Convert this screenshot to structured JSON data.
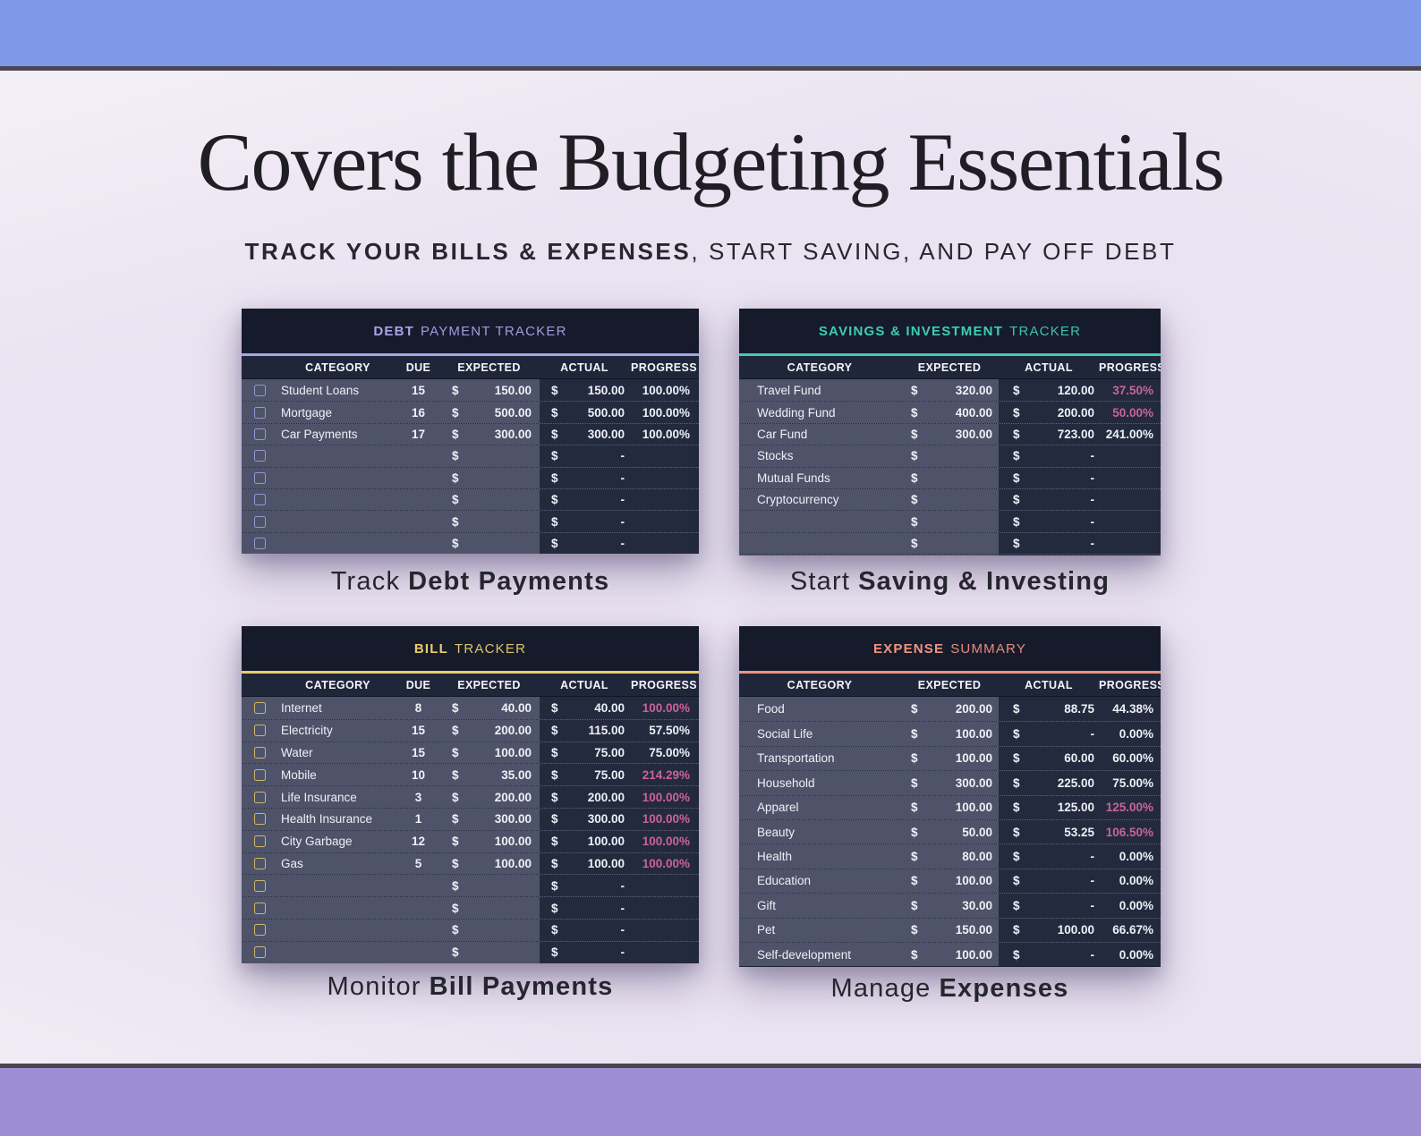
{
  "header": {
    "title": "Covers the Budgeting Essentials",
    "subtitle_bold": "TRACK YOUR BILLS & EXPENSES",
    "subtitle_rest": ", START SAVING, AND PAY OFF DEBT"
  },
  "colors": {
    "top_bar": "#7e99e8",
    "bottom_bar": "#9d8ed3",
    "background": "#eae3f1",
    "table_dark": "#242a3e",
    "table_light_zone": "#4e5369",
    "pink_value": "#c9639b",
    "debt_accent": "#a7a3e8",
    "savings_accent": "#3fccb4",
    "bill_accent": "#e9cd6b",
    "expense_accent": "#f0937f"
  },
  "tables": {
    "debt": {
      "title_bold": "DEBT",
      "title_rest": "PAYMENT TRACKER",
      "accent": "#a7a3e8",
      "has_checkbox": true,
      "columns": [
        "CATEGORY",
        "DUE",
        "EXPECTED",
        "ACTUAL",
        "PROGRESS"
      ],
      "caption_normal": "Track",
      "caption_bold": "Debt Payments",
      "rows": [
        {
          "category": "Student Loans",
          "due": "15",
          "expected": "150.00",
          "actual": "150.00",
          "progress": "100.00%",
          "pink": false
        },
        {
          "category": "Mortgage",
          "due": "16",
          "expected": "500.00",
          "actual": "500.00",
          "progress": "100.00%",
          "pink": false
        },
        {
          "category": "Car Payments",
          "due": "17",
          "expected": "300.00",
          "actual": "300.00",
          "progress": "100.00%",
          "pink": false
        },
        {
          "category": "",
          "due": "",
          "expected": "",
          "actual": "-",
          "progress": "",
          "pink": false
        },
        {
          "category": "",
          "due": "",
          "expected": "",
          "actual": "-",
          "progress": "",
          "pink": false
        },
        {
          "category": "",
          "due": "",
          "expected": "",
          "actual": "-",
          "progress": "",
          "pink": false
        },
        {
          "category": "",
          "due": "",
          "expected": "",
          "actual": "-",
          "progress": "",
          "pink": false
        },
        {
          "category": "",
          "due": "",
          "expected": "",
          "actual": "-",
          "progress": "",
          "pink": false
        }
      ]
    },
    "savings": {
      "title_bold": "SAVINGS & INVESTMENT",
      "title_rest": "TRACKER",
      "accent": "#3fccb4",
      "has_checkbox": false,
      "columns": [
        "CATEGORY",
        "EXPECTED",
        "ACTUAL",
        "PROGRESS"
      ],
      "caption_normal": "Start",
      "caption_bold": "Saving & Investing",
      "rows": [
        {
          "category": "Travel Fund",
          "expected": "320.00",
          "actual": "120.00",
          "progress": "37.50%",
          "pink": true
        },
        {
          "category": "Wedding Fund",
          "expected": "400.00",
          "actual": "200.00",
          "progress": "50.00%",
          "pink": true
        },
        {
          "category": "Car Fund",
          "expected": "300.00",
          "actual": "723.00",
          "progress": "241.00%",
          "pink": false
        },
        {
          "category": "Stocks",
          "expected": "",
          "actual": "-",
          "progress": "",
          "pink": false
        },
        {
          "category": "Mutual Funds",
          "expected": "",
          "actual": "-",
          "progress": "",
          "pink": false
        },
        {
          "category": "Cryptocurrency",
          "expected": "",
          "actual": "-",
          "progress": "",
          "pink": false
        },
        {
          "category": "",
          "expected": "",
          "actual": "-",
          "progress": "",
          "pink": false
        },
        {
          "category": "",
          "expected": "",
          "actual": "-",
          "progress": "",
          "pink": false
        },
        {
          "category": "",
          "expected": "",
          "actual": "-",
          "progress": "",
          "pink": false
        }
      ]
    },
    "bill": {
      "title_bold": "BILL",
      "title_rest": "TRACKER",
      "accent": "#e9cd6b",
      "has_checkbox": true,
      "columns": [
        "CATEGORY",
        "DUE",
        "EXPECTED",
        "ACTUAL",
        "PROGRESS"
      ],
      "caption_normal": "Monitor",
      "caption_bold": "Bill Payments",
      "rows": [
        {
          "category": "Internet",
          "due": "8",
          "expected": "40.00",
          "actual": "40.00",
          "progress": "100.00%",
          "pink": true
        },
        {
          "category": "Electricity",
          "due": "15",
          "expected": "200.00",
          "actual": "115.00",
          "progress": "57.50%",
          "pink": false
        },
        {
          "category": "Water",
          "due": "15",
          "expected": "100.00",
          "actual": "75.00",
          "progress": "75.00%",
          "pink": false
        },
        {
          "category": "Mobile",
          "due": "10",
          "expected": "35.00",
          "actual": "75.00",
          "progress": "214.29%",
          "pink": true
        },
        {
          "category": "Life Insurance",
          "due": "3",
          "expected": "200.00",
          "actual": "200.00",
          "progress": "100.00%",
          "pink": true
        },
        {
          "category": "Health Insurance",
          "due": "1",
          "expected": "300.00",
          "actual": "300.00",
          "progress": "100.00%",
          "pink": true
        },
        {
          "category": "City Garbage",
          "due": "12",
          "expected": "100.00",
          "actual": "100.00",
          "progress": "100.00%",
          "pink": true
        },
        {
          "category": "Gas",
          "due": "5",
          "expected": "100.00",
          "actual": "100.00",
          "progress": "100.00%",
          "pink": true
        },
        {
          "category": "",
          "due": "",
          "expected": "",
          "actual": "-",
          "progress": "",
          "pink": false
        },
        {
          "category": "",
          "due": "",
          "expected": "",
          "actual": "-",
          "progress": "",
          "pink": false
        },
        {
          "category": "",
          "due": "",
          "expected": "",
          "actual": "-",
          "progress": "",
          "pink": false
        },
        {
          "category": "",
          "due": "",
          "expected": "",
          "actual": "-",
          "progress": "",
          "pink": false
        }
      ]
    },
    "expense": {
      "title_bold": "EXPENSE",
      "title_rest": "SUMMARY",
      "accent": "#f0937f",
      "has_checkbox": false,
      "columns": [
        "CATEGORY",
        "EXPECTED",
        "ACTUAL",
        "PROGRESS"
      ],
      "caption_normal": "Manage",
      "caption_bold": "Expenses",
      "rows": [
        {
          "category": "Food",
          "expected": "200.00",
          "actual": "88.75",
          "progress": "44.38%",
          "pink": false
        },
        {
          "category": "Social Life",
          "expected": "100.00",
          "actual": "-",
          "progress": "0.00%",
          "pink": false
        },
        {
          "category": "Transportation",
          "expected": "100.00",
          "actual": "60.00",
          "progress": "60.00%",
          "pink": false
        },
        {
          "category": "Household",
          "expected": "300.00",
          "actual": "225.00",
          "progress": "75.00%",
          "pink": false
        },
        {
          "category": "Apparel",
          "expected": "100.00",
          "actual": "125.00",
          "progress": "125.00%",
          "pink": true
        },
        {
          "category": "Beauty",
          "expected": "50.00",
          "actual": "53.25",
          "progress": "106.50%",
          "pink": true
        },
        {
          "category": "Health",
          "expected": "80.00",
          "actual": "-",
          "progress": "0.00%",
          "pink": false
        },
        {
          "category": "Education",
          "expected": "100.00",
          "actual": "-",
          "progress": "0.00%",
          "pink": false
        },
        {
          "category": "Gift",
          "expected": "30.00",
          "actual": "-",
          "progress": "0.00%",
          "pink": false
        },
        {
          "category": "Pet",
          "expected": "150.00",
          "actual": "100.00",
          "progress": "66.67%",
          "pink": false
        },
        {
          "category": "Self-development",
          "expected": "100.00",
          "actual": "-",
          "progress": "0.00%",
          "pink": false
        }
      ]
    }
  }
}
